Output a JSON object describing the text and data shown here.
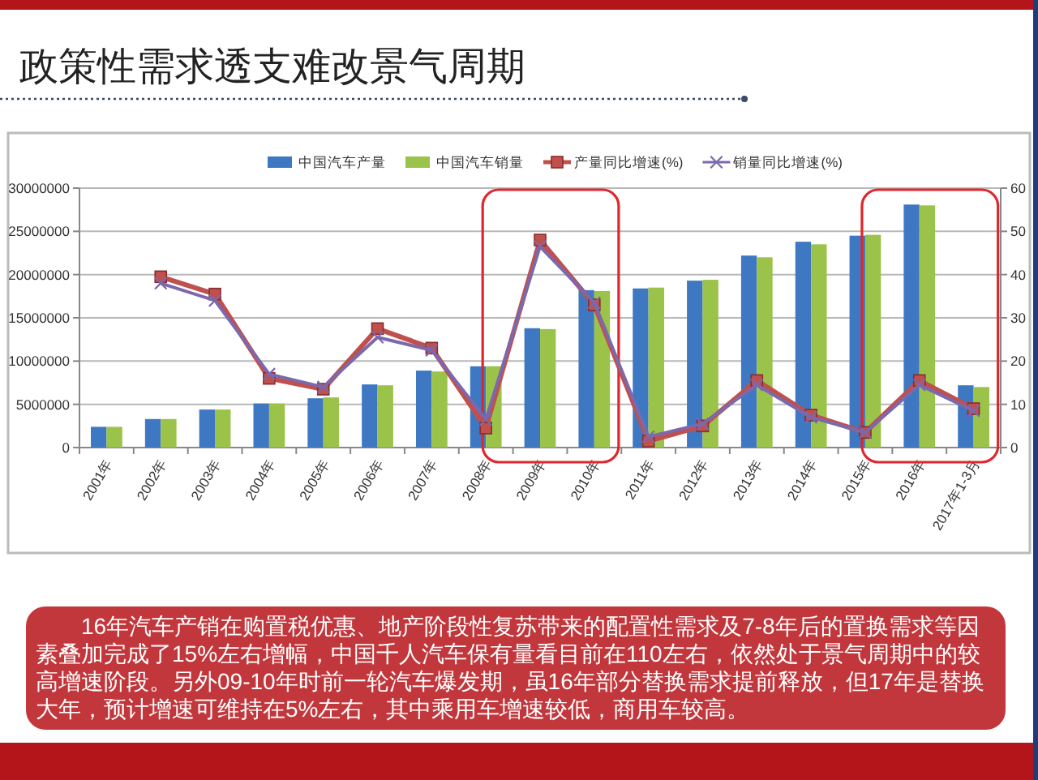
{
  "chart_data": {
    "type": "bar",
    "title": "政策性需求透支难改景气周期",
    "categories": [
      "2001年",
      "2002年",
      "2003年",
      "2004年",
      "2005年",
      "2006年",
      "2007年",
      "2008年",
      "2009年",
      "2010年",
      "2011年",
      "2012年",
      "2013年",
      "2014年",
      "2015年",
      "2016年",
      "2017年1-3月"
    ],
    "series": [
      {
        "name": "中国汽车产量",
        "color": "#3f78c2",
        "values": [
          2400000,
          3300000,
          4400000,
          5100000,
          5700000,
          7300000,
          8900000,
          9400000,
          13800000,
          18200000,
          18400000,
          19300000,
          22200000,
          23800000,
          24500000,
          28100000,
          7200000
        ]
      },
      {
        "name": "中国汽车销量",
        "color": "#9bc34a",
        "values": [
          2400000,
          3300000,
          4400000,
          5100000,
          5800000,
          7200000,
          8800000,
          9400000,
          13700000,
          18100000,
          18500000,
          19400000,
          22000000,
          23500000,
          24600000,
          28000000,
          7000000
        ]
      },
      {
        "name": "产量同比增速(%)",
        "color": "#c0504d",
        "type": "line",
        "axis": "y2",
        "marker": "square",
        "values": [
          null,
          39.5,
          35.5,
          16,
          13.5,
          27.5,
          23,
          4.5,
          48,
          33,
          1.5,
          5,
          15.5,
          7.5,
          3.5,
          15.5,
          9
        ]
      },
      {
        "name": "销量同比增速(%)",
        "color": "#7b68ad",
        "type": "line",
        "axis": "y2",
        "marker": "cross",
        "values": [
          null,
          38,
          34,
          17,
          14,
          25.5,
          22.5,
          6.5,
          46.5,
          33.5,
          2.5,
          5.5,
          14.5,
          7,
          3.5,
          14.5,
          8.5
        ]
      }
    ],
    "ylim": [
      0,
      30000000
    ],
    "yticks": [
      0,
      5000000,
      10000000,
      15000000,
      20000000,
      25000000,
      30000000
    ],
    "y2lim": [
      0,
      60
    ],
    "y2ticks": [
      0,
      10,
      20,
      30,
      40,
      50,
      60
    ],
    "grid": "y",
    "legend": "top",
    "annotations": [
      "16年汽车产销在购置税优惠、地产阶段性复苏带来的配置性需求及7-8年后的置换需求等因素叠加完成了15%左右增幅，中国千人汽车保有量看目前在110左右，依然处于景气周期中的较高增速阶段。另外09-10年时前一轮汽车爆发期，虽16年部分替换需求提前释放，但17年是替换大年，预计增速可维持在5%左右，其中乘用车增速较低，商用车较高。"
    ]
  }
}
